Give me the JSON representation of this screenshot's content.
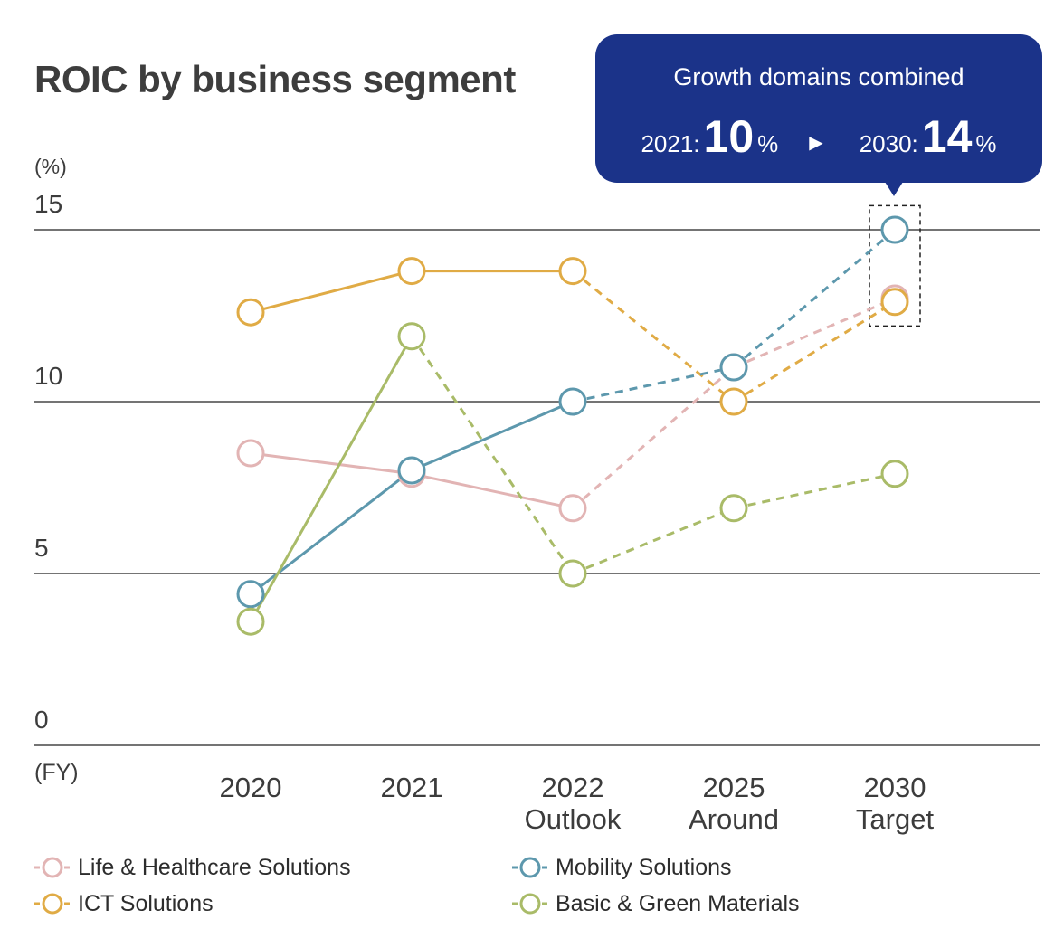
{
  "title": "ROIC by business segment",
  "callout": {
    "heading": "Growth domains combined",
    "from_year": "2021:",
    "from_value": "10",
    "to_year": "2030:",
    "to_value": "14",
    "unit": "%",
    "arrow_icon": "triangle-right-icon",
    "color": "#1b3389"
  },
  "chart_data": {
    "type": "line",
    "title": "ROIC by business segment",
    "ylabel": "(%)",
    "xlabel": "(FY)",
    "ylim": [
      0,
      15
    ],
    "yticks": [
      "0",
      "5",
      "10",
      "15"
    ],
    "categories": [
      [
        "2020"
      ],
      [
        "2021"
      ],
      [
        "2022",
        "Outlook"
      ],
      [
        "2025",
        "Around"
      ],
      [
        "2030",
        "Target"
      ]
    ],
    "actual_through_index": 2,
    "grid": true,
    "series": [
      {
        "name": "Life & Healthcare Solutions",
        "color": "#e2b4b4",
        "values": [
          8.5,
          7.9,
          6.9,
          11.0,
          13.0
        ],
        "solid_through": 2
      },
      {
        "name": "ICT Solutions",
        "color": "#e0ab45",
        "values": [
          12.6,
          13.8,
          13.8,
          10.0,
          12.9
        ],
        "solid_through": 2
      },
      {
        "name": "Mobility Solutions",
        "color": "#5d98ad",
        "values": [
          4.4,
          8.0,
          10.0,
          11.0,
          15.0
        ],
        "solid_through": 2
      },
      {
        "name": "Basic & Green Materials",
        "color": "#a9bb68",
        "values": [
          3.6,
          11.9,
          5.0,
          6.9,
          7.9
        ],
        "solid_through": 1
      }
    ],
    "highlight": {
      "category_index": 4,
      "ymin": 12.2,
      "ymax": 15.7
    }
  },
  "legend_placement": "bottom"
}
